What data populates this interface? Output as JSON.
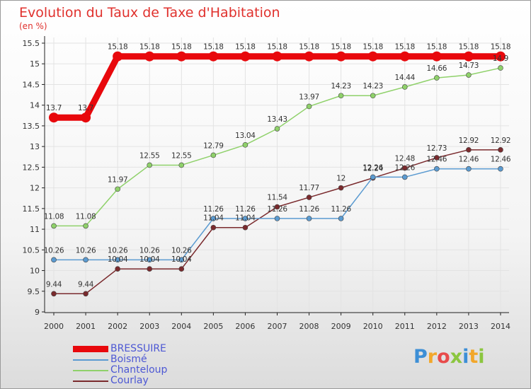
{
  "chart_data": {
    "type": "line",
    "title": "Evolution du Taux de Taxe d'Habitation",
    "ylabel": "(en %)",
    "xlabel": "",
    "x": [
      "2000",
      "2001",
      "2002",
      "2003",
      "2004",
      "2005",
      "2006",
      "2007",
      "2008",
      "2009",
      "2010",
      "2011",
      "2012",
      "2013",
      "2014"
    ],
    "ylim": [
      9,
      15.5
    ],
    "yticks": [
      "9",
      "9.5",
      "10",
      "10.5",
      "11",
      "11.5",
      "12",
      "12.5",
      "13",
      "13.5",
      "14",
      "14.5",
      "15",
      "15.5"
    ],
    "grid": true,
    "legend_position": "bottom-left",
    "series": [
      {
        "name": "BRESSUIRE",
        "color": "#e8080c",
        "values": [
          13.7,
          13.7,
          15.18,
          15.18,
          15.18,
          15.18,
          15.18,
          15.18,
          15.18,
          15.18,
          15.18,
          15.18,
          15.18,
          15.18,
          15.18
        ],
        "labels": [
          "13.7",
          "13.7",
          "15.18",
          "15.18",
          "15.18",
          "15.18",
          "15.18",
          "15.18",
          "15.18",
          "15.18",
          "15.18",
          "15.18",
          "15.18",
          "15.18",
          "15.18"
        ]
      },
      {
        "name": "Boismé",
        "color": "#5b9bd1",
        "values": [
          10.26,
          10.26,
          10.26,
          10.26,
          10.26,
          11.26,
          11.26,
          11.26,
          11.26,
          11.26,
          12.26,
          12.26,
          12.46,
          12.46,
          12.46
        ],
        "labels": [
          "10.26",
          "10.26",
          "10.26",
          "10.26",
          "10.26",
          "11.26",
          "11.26",
          "11.26",
          "11.26",
          "11.26",
          "12.26",
          "12.26",
          "12.46",
          "12.46",
          "12.46"
        ]
      },
      {
        "name": "Chanteloup",
        "color": "#8fd16a",
        "values": [
          11.08,
          11.08,
          11.97,
          12.55,
          12.55,
          12.79,
          13.04,
          13.43,
          13.97,
          14.23,
          14.23,
          14.44,
          14.66,
          14.73,
          14.9
        ],
        "labels": [
          "11.08",
          "11.08",
          "11.97",
          "12.55",
          "12.55",
          "12.79",
          "13.04",
          "13.43",
          "13.97",
          "14.23",
          "14.23",
          "14.44",
          "14.66",
          "14.73",
          "14.9"
        ]
      },
      {
        "name": "Courlay",
        "color": "#7a2a2d",
        "values": [
          9.44,
          9.44,
          10.04,
          10.04,
          10.04,
          11.04,
          11.04,
          11.54,
          11.77,
          12,
          12.24,
          12.48,
          12.73,
          12.92,
          12.92
        ],
        "labels": [
          "9.44",
          "9.44",
          "10.04",
          "10.04",
          "10.04",
          "11.04",
          "11.04",
          "11.54",
          "11.77",
          "12",
          "12.24",
          "12.48",
          "12.73",
          "12.92",
          "12.92"
        ]
      }
    ]
  },
  "logo": {
    "letters": [
      "P",
      "r",
      "o",
      "x",
      "i",
      "t",
      "i"
    ],
    "colors": [
      "#3d8fd6",
      "#f2a72b",
      "#e84a4a",
      "#8bc63f",
      "#3d8fd6",
      "#f2a72b",
      "#8bc63f"
    ]
  }
}
